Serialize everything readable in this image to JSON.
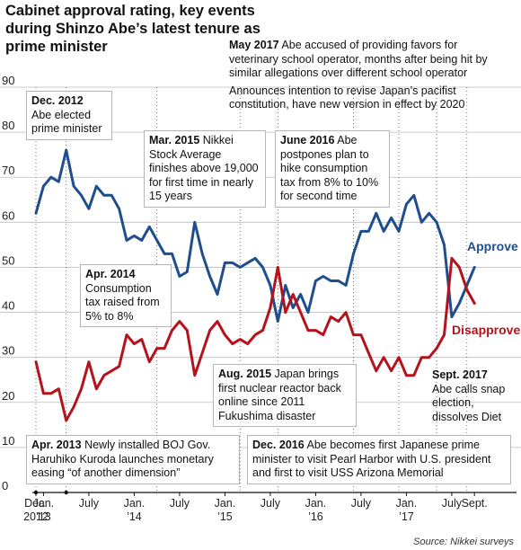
{
  "title": "Cabinet approval rating, key events during Shinzo Abe’s latest tenure as prime minister",
  "source": "Source: Nikkei surveys",
  "colors": {
    "approve": "#1f4e8c",
    "disapprove": "#b5121b",
    "grid": "#bdbdbd"
  },
  "annotations": [
    {
      "date": "May 2017",
      "text": "Abe accused of providing favors for veterinary school operator, months after being hit by similar allegations over different school operator"
    },
    {
      "date": "",
      "text": "Announces intention to revise Japan’s pacifist constitution, have new version in effect by 2020"
    },
    {
      "date": "Dec. 2012",
      "text": "Abe elected prime minister"
    },
    {
      "date": "Mar. 2015",
      "text": "Nikkei Stock Average finishes above 19,000 for first time in nearly 15 years"
    },
    {
      "date": "June 2016",
      "text": "Abe postpones plan to hike consumption tax from 8% to 10% for second time"
    },
    {
      "date": "Apr. 2014",
      "text": "Consumption tax raised from 5% to 8%"
    },
    {
      "date": "Aug. 2015",
      "text": "Japan brings first nuclear reactor back online since 2011 Fukushima disaster"
    },
    {
      "date": "Sept. 2017",
      "text": "Abe calls snap election, dissolves Diet"
    },
    {
      "date": "Apr. 2013",
      "text": "Newly installed BOJ Gov. Haruhiko Kuroda launches monetary easing “of another dimension”"
    },
    {
      "date": "Dec. 2016",
      "text": "Abe becomes first Japanese prime minister to visit Pearl Harbor with U.S. president and first to visit USS Arizona Memorial"
    }
  ],
  "chart_data": {
    "type": "line",
    "title": "Cabinet approval rating, key events during Shinzo Abe’s latest tenure as prime minister",
    "ylim": [
      0,
      90
    ],
    "yticks": [
      0,
      10,
      20,
      30,
      40,
      50,
      60,
      70,
      80,
      90
    ],
    "grid": true,
    "xlim": [
      0,
      60
    ],
    "xticks": [
      {
        "x": 0,
        "label": "Dec."
      },
      {
        "x": 1,
        "label": "Jan."
      },
      {
        "x": 7,
        "label": "July"
      },
      {
        "x": 13,
        "label": "Jan."
      },
      {
        "x": 19,
        "label": "July"
      },
      {
        "x": 25,
        "label": "Jan."
      },
      {
        "x": 31,
        "label": "July"
      },
      {
        "x": 37,
        "label": "Jan."
      },
      {
        "x": 43,
        "label": "July"
      },
      {
        "x": 49,
        "label": "Jan."
      },
      {
        "x": 55,
        "label": "July"
      },
      {
        "x": 58,
        "label": "Sept."
      }
    ],
    "xsublabels": [
      {
        "x": 0,
        "label": "2012"
      },
      {
        "x": 1,
        "label": "’13"
      },
      {
        "x": 13,
        "label": "’14"
      },
      {
        "x": 25,
        "label": "’15"
      },
      {
        "x": 37,
        "label": "’16"
      },
      {
        "x": 49,
        "label": "’17"
      }
    ],
    "event_markers": [
      0,
      4,
      16,
      27,
      32,
      42,
      48,
      53,
      57
    ],
    "series": [
      {
        "name": "Approve",
        "x": [
          0,
          1,
          2,
          3,
          4,
          5,
          6,
          7,
          8,
          9,
          10,
          11,
          12,
          13,
          14,
          15,
          16,
          17,
          18,
          19,
          20,
          21,
          22,
          23,
          24,
          25,
          26,
          27,
          28,
          29,
          30,
          31,
          32,
          33,
          34,
          35,
          36,
          37,
          38,
          39,
          40,
          41,
          42,
          43,
          44,
          45,
          46,
          47,
          48,
          49,
          50,
          51,
          52,
          53,
          54,
          55,
          56,
          57,
          58
        ],
        "values": [
          62,
          68,
          70,
          69,
          76,
          68,
          66,
          63,
          68,
          66,
          66,
          63,
          56,
          57,
          56,
          59,
          56,
          53,
          53,
          48,
          49,
          60,
          53,
          48,
          44,
          51,
          51,
          50,
          51,
          52,
          50,
          46,
          38,
          46,
          41,
          44,
          40,
          47,
          48,
          47,
          47,
          46,
          53,
          58,
          58,
          62,
          58,
          61,
          58,
          64,
          66,
          60,
          62,
          60,
          55,
          39,
          42,
          46,
          50
        ]
      },
      {
        "name": "Disapprove",
        "x": [
          0,
          1,
          2,
          3,
          4,
          5,
          6,
          7,
          8,
          9,
          10,
          11,
          12,
          13,
          14,
          15,
          16,
          17,
          18,
          19,
          20,
          21,
          22,
          23,
          24,
          25,
          26,
          27,
          28,
          29,
          30,
          31,
          32,
          33,
          34,
          35,
          36,
          37,
          38,
          39,
          40,
          41,
          42,
          43,
          44,
          45,
          46,
          47,
          48,
          49,
          50,
          51,
          52,
          53,
          54,
          55,
          56,
          57,
          58
        ],
        "values": [
          29,
          22,
          22,
          23,
          16,
          19,
          23,
          29,
          23,
          26,
          27,
          28,
          35,
          33,
          34,
          29,
          32,
          32,
          36,
          38,
          36,
          26,
          31,
          36,
          38,
          35,
          33,
          34,
          33,
          35,
          36,
          41,
          50,
          40,
          44,
          40,
          36,
          36,
          35,
          39,
          38,
          40,
          35,
          35,
          31,
          27,
          30,
          27,
          30,
          26,
          26,
          30,
          30,
          32,
          35,
          52,
          50,
          45,
          42
        ]
      }
    ]
  }
}
